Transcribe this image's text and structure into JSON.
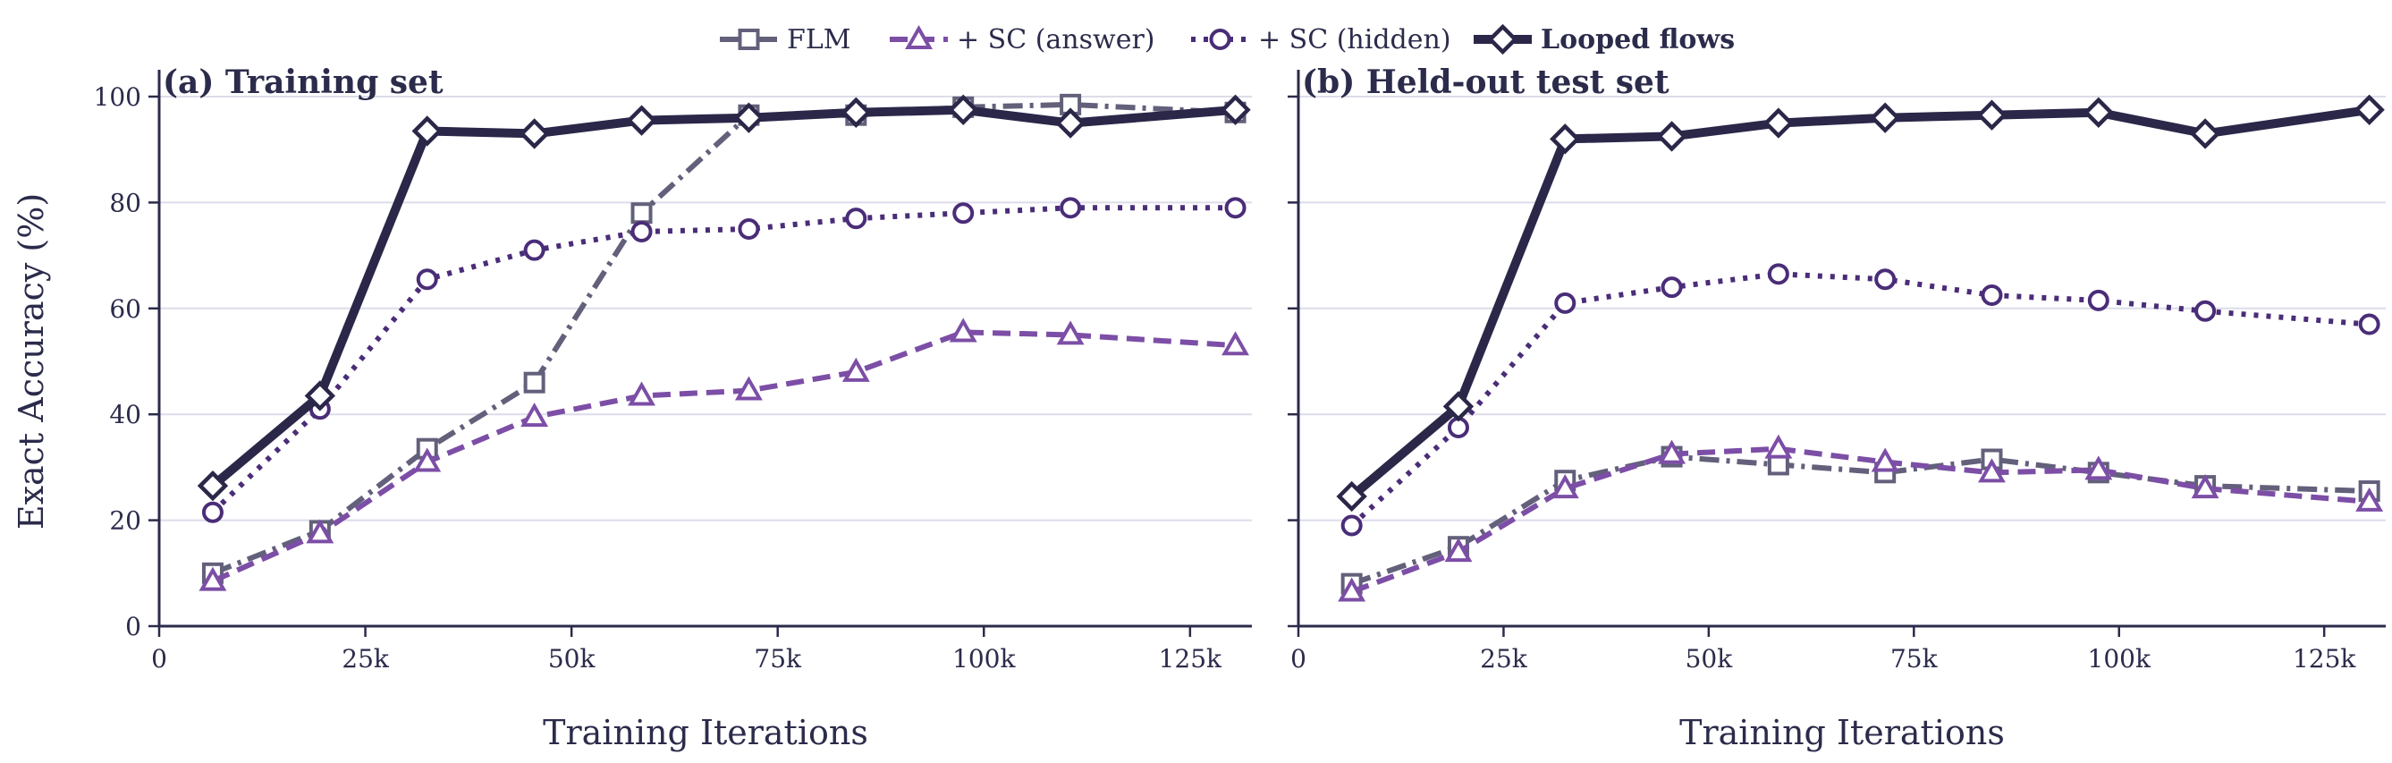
{
  "legend": [
    {
      "name": "FLM",
      "color": "#62607a",
      "dash": "22 8 4 8",
      "marker": "square",
      "width": 6,
      "bold": false
    },
    {
      "name": "+ SC (answer)",
      "color": "#7c4ea6",
      "dash": "20 10",
      "marker": "triangle",
      "width": 6,
      "bold": false
    },
    {
      "name": "+ SC (hidden)",
      "color": "#4a2d78",
      "dash": "5 9",
      "marker": "circle",
      "width": 6,
      "bold": false
    },
    {
      "name": "Looped flows",
      "color": "#2a2748",
      "dash": "",
      "marker": "diamond",
      "width": 10,
      "bold": true
    }
  ],
  "chart_data": [
    {
      "type": "line",
      "title": "(a) Training set",
      "xlabel": "Training Iterations",
      "ylabel": "Exact Accuracy (%)",
      "xlim": [
        0,
        132500
      ],
      "ylim": [
        0,
        100
      ],
      "xticks": [
        0,
        25000,
        50000,
        75000,
        100000,
        125000
      ],
      "xtick_labels": [
        "0",
        "25k",
        "50k",
        "75k",
        "100k",
        "125k"
      ],
      "yticks": [
        0,
        20,
        40,
        60,
        80,
        100
      ],
      "ytick_labels": [
        "0",
        "20",
        "40",
        "60",
        "80",
        "100"
      ],
      "grid": "horizontal",
      "x": [
        6500,
        19500,
        32500,
        45500,
        58500,
        71500,
        84500,
        97500,
        110500,
        130500
      ],
      "series": [
        {
          "name": "FLM",
          "values": [
            10,
            18,
            33.5,
            46,
            78,
            96.5,
            96.5,
            98,
            98.5,
            97
          ]
        },
        {
          "name": "+ SC (answer)",
          "values": [
            8.5,
            17.5,
            31,
            39.5,
            43.5,
            44.5,
            48,
            55.5,
            55,
            53
          ]
        },
        {
          "name": "+ SC (hidden)",
          "values": [
            21.5,
            41,
            65.5,
            71,
            74.5,
            75,
            77,
            78,
            79,
            79
          ]
        },
        {
          "name": "Looped flows",
          "values": [
            26.5,
            43.5,
            93.5,
            93,
            95.5,
            96,
            97,
            97.5,
            95,
            97.5
          ]
        }
      ]
    },
    {
      "type": "line",
      "title": "(b) Held-out test set",
      "xlabel": "Training Iterations",
      "ylabel": "",
      "xlim": [
        0,
        132500
      ],
      "ylim": [
        0,
        100
      ],
      "xticks": [
        0,
        25000,
        50000,
        75000,
        100000,
        125000
      ],
      "xtick_labels": [
        "0",
        "25k",
        "50k",
        "75k",
        "100k",
        "125k"
      ],
      "yticks": [
        0,
        20,
        40,
        60,
        80,
        100
      ],
      "ytick_labels": [],
      "grid": "horizontal",
      "x": [
        6500,
        19500,
        32500,
        45500,
        58500,
        71500,
        84500,
        97500,
        110500,
        130500
      ],
      "series": [
        {
          "name": "FLM",
          "values": [
            8,
            15,
            27.5,
            32,
            30.5,
            29,
            31.5,
            29,
            26.5,
            25.5
          ]
        },
        {
          "name": "+ SC (answer)",
          "values": [
            6.5,
            14,
            26,
            32.5,
            33.5,
            31,
            29,
            29.5,
            26,
            23.5
          ]
        },
        {
          "name": "+ SC (hidden)",
          "values": [
            19,
            37.5,
            61,
            64,
            66.5,
            65.5,
            62.5,
            61.5,
            59.5,
            57
          ]
        },
        {
          "name": "Looped flows",
          "values": [
            24.5,
            41.5,
            92,
            92.5,
            95,
            96,
            96.5,
            97,
            93,
            97.5
          ]
        }
      ]
    }
  ]
}
